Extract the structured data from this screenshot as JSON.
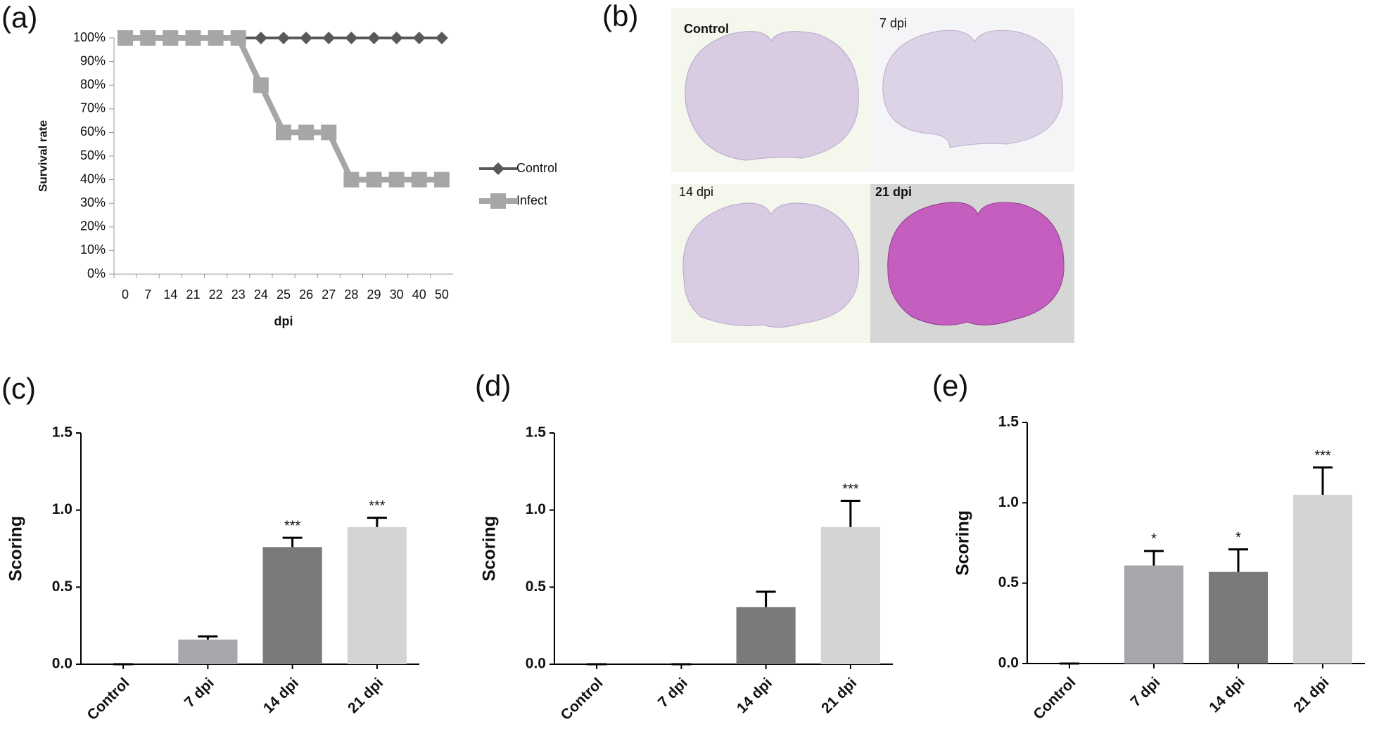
{
  "chart_data": [
    {
      "type": "line",
      "panel_label": "(a)",
      "y_label": "Survival rate",
      "x_label": "dpi",
      "categories": [
        "0",
        "7",
        "14",
        "21",
        "22",
        "23",
        "24",
        "25",
        "26",
        "27",
        "28",
        "29",
        "30",
        "40",
        "50"
      ],
      "series": [
        {
          "name": "Control",
          "color": "#595959",
          "marker": "diamond",
          "values": [
            100,
            100,
            100,
            100,
            100,
            100,
            100,
            100,
            100,
            100,
            100,
            100,
            100,
            100,
            100
          ]
        },
        {
          "name": "Infect",
          "color": "#a6a6a6",
          "marker": "square",
          "values": [
            100,
            100,
            100,
            100,
            100,
            100,
            80,
            60,
            60,
            60,
            40,
            40,
            40,
            40,
            40
          ]
        }
      ],
      "ylim": [
        0,
        100
      ],
      "yticks": [
        {
          "value": 0,
          "label": "0%"
        },
        {
          "value": 10,
          "label": "10%"
        },
        {
          "value": 20,
          "label": "20%"
        },
        {
          "value": 30,
          "label": "30%"
        },
        {
          "value": 40,
          "label": "40%"
        },
        {
          "value": 50,
          "label": "50%"
        },
        {
          "value": 60,
          "label": "60%"
        },
        {
          "value": 70,
          "label": "70%"
        },
        {
          "value": 80,
          "label": "80%"
        },
        {
          "value": 90,
          "label": "90%"
        },
        {
          "value": 100,
          "label": "100%"
        }
      ],
      "grid": false,
      "legend": "right"
    },
    {
      "type": "bar",
      "panel_label": "(c)",
      "y_label": "Scoring",
      "categories": [
        "Control",
        "7 dpi",
        "14 dpi",
        "21 dpi"
      ],
      "values": [
        0,
        0.16,
        0.76,
        0.89
      ],
      "errors": [
        0,
        0.02,
        0.06,
        0.06
      ],
      "annotations": [
        null,
        null,
        "***",
        "***"
      ],
      "colors": [
        "#a6a6ab",
        "#a6a6ab",
        "#7a7a7a",
        "#d4d4d4"
      ],
      "ylim": [
        0,
        1.5
      ],
      "yticks": [
        {
          "value": 0,
          "label": "0.0"
        },
        {
          "value": 0.5,
          "label": "0.5"
        },
        {
          "value": 1,
          "label": "1.0"
        },
        {
          "value": 1.5,
          "label": "1.5"
        }
      ]
    },
    {
      "type": "bar",
      "panel_label": "(d)",
      "y_label": "Scoring",
      "categories": [
        "Control",
        "7 dpi",
        "14 dpi",
        "21 dpi"
      ],
      "values": [
        0,
        0,
        0.37,
        0.89
      ],
      "errors": [
        0,
        0,
        0.1,
        0.17
      ],
      "annotations": [
        null,
        null,
        null,
        "***"
      ],
      "colors": [
        "#a6a6ab",
        "#a6a6ab",
        "#7a7a7a",
        "#d4d4d4"
      ],
      "ylim": [
        0,
        1.5
      ],
      "yticks": [
        {
          "value": 0,
          "label": "0.0"
        },
        {
          "value": 0.5,
          "label": "0.5"
        },
        {
          "value": 1,
          "label": "1.0"
        },
        {
          "value": 1.5,
          "label": "1.5"
        }
      ]
    },
    {
      "type": "bar",
      "panel_label": "(e)",
      "y_label": "Scoring",
      "categories": [
        "Control",
        "7 dpi",
        "14 dpi",
        "21 dpi"
      ],
      "values": [
        0,
        0.61,
        0.57,
        1.05
      ],
      "errors": [
        0,
        0.09,
        0.14,
        0.17
      ],
      "annotations": [
        null,
        "*",
        "*",
        "***"
      ],
      "colors": [
        "#a6a6ab",
        "#a6a6ab",
        "#7a7a7a",
        "#d4d4d4"
      ],
      "ylim": [
        0,
        1.5
      ],
      "yticks": [
        {
          "value": 0,
          "label": "0.0"
        },
        {
          "value": 0.5,
          "label": "0.5"
        },
        {
          "value": 1,
          "label": "1.0"
        },
        {
          "value": 1.5,
          "label": "1.5"
        }
      ]
    }
  ],
  "panel_b": {
    "panel_label": "(b)",
    "images": [
      {
        "label": "Control"
      },
      {
        "label": "7 dpi"
      },
      {
        "label": "14 dpi"
      },
      {
        "label": "21 dpi"
      }
    ]
  }
}
